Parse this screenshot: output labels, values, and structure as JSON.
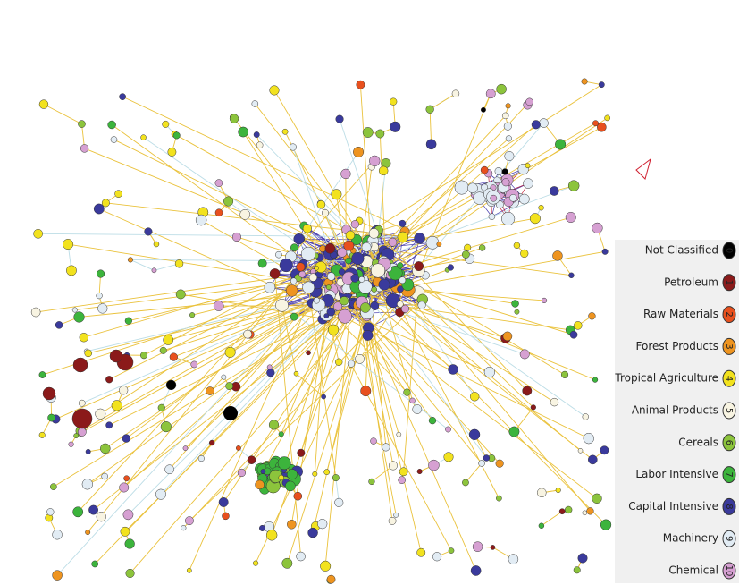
{
  "legend": {
    "items": [
      {
        "label": "Not Classified",
        "code": "0",
        "color": "#000000"
      },
      {
        "label": "Petroleum",
        "code": "1",
        "color": "#8b1a1a"
      },
      {
        "label": "Raw Materials",
        "code": "2",
        "color": "#e8501e"
      },
      {
        "label": "Forest Products",
        "code": "3",
        "color": "#ee9420"
      },
      {
        "label": "Tropical Agriculture",
        "code": "4",
        "color": "#f2e21e"
      },
      {
        "label": "Animal Products",
        "code": "5",
        "color": "#f8f4e2"
      },
      {
        "label": "Cereals",
        "code": "6",
        "color": "#8cc43c"
      },
      {
        "label": "Labor Intensive",
        "code": "7",
        "color": "#3cb43c"
      },
      {
        "label": "Capital Intensive",
        "code": "8",
        "color": "#3a3a9c"
      },
      {
        "label": "Machinery",
        "code": "9",
        "color": "#e2ecf4"
      },
      {
        "label": "Chemical",
        "code": "10",
        "color": "#d6a0d2"
      }
    ]
  }
}
